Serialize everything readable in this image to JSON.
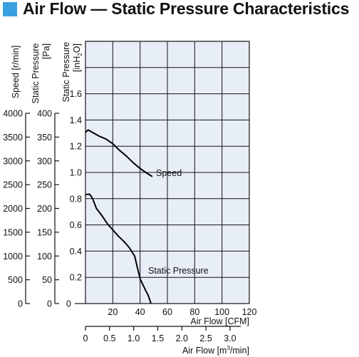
{
  "header": {
    "title": "Air Flow — Static Pressure Characteristics",
    "accent_color": "#3aa0e0"
  },
  "chart_data": {
    "type": "line",
    "title": "Air Flow — Static Pressure Characteristics",
    "grid": true,
    "plot_background": "#e8eef8",
    "axes": {
      "x_cfm": {
        "label": "Air Flow [CFM]",
        "range": [
          0,
          120
        ],
        "ticks": [
          "20",
          "40",
          "60",
          "80",
          "100",
          "120"
        ]
      },
      "x_m3min": {
        "label_prefix": "Air Flow [m",
        "label_sup": "3",
        "label_suffix": "/min]",
        "range": [
          0,
          3.4
        ],
        "ticks": [
          "0",
          "0.5",
          "1.0",
          "1.5",
          "2.0",
          "2.5",
          "3.0"
        ]
      },
      "y_speed": {
        "label": "Speed [r/min]",
        "range": [
          0,
          4000
        ],
        "ticks": [
          "0",
          "500",
          "1000",
          "1500",
          "2000",
          "2500",
          "3000",
          "3500",
          "4000"
        ]
      },
      "y_pa": {
        "label": "Static Pressure [Pa]",
        "range": [
          0,
          400
        ],
        "ticks": [
          "0",
          "50",
          "100",
          "150",
          "200",
          "250",
          "300",
          "350",
          "400"
        ]
      },
      "y_inh2o": {
        "label_prefix": "Static Pressure [inH",
        "label_sub": "2",
        "label_suffix": "O]",
        "range": [
          0,
          2.0
        ],
        "ticks": [
          "0.2",
          "0.4",
          "0.6",
          "0.8",
          "1.0",
          "1.2",
          "1.4",
          "1.6"
        ]
      }
    },
    "series": [
      {
        "name": "Speed",
        "x_unit": "CFM",
        "y_unit": "r/min",
        "x": [
          0,
          2,
          5,
          10,
          15,
          20,
          25,
          30,
          35,
          40,
          45,
          49
        ],
        "y": [
          3600,
          3650,
          3600,
          3520,
          3460,
          3360,
          3220,
          3100,
          2960,
          2840,
          2740,
          2670
        ]
      },
      {
        "name": "Static Pressure",
        "x_unit": "CFM",
        "y_unit": "Pa",
        "x": [
          0,
          3,
          5,
          8,
          12,
          16,
          20,
          24,
          28,
          32,
          36,
          40,
          42,
          44,
          46,
          48
        ],
        "y": [
          229,
          230,
          222,
          200,
          185,
          168,
          155,
          142,
          131,
          118,
          100,
          52,
          40,
          28,
          17,
          0
        ]
      }
    ]
  }
}
